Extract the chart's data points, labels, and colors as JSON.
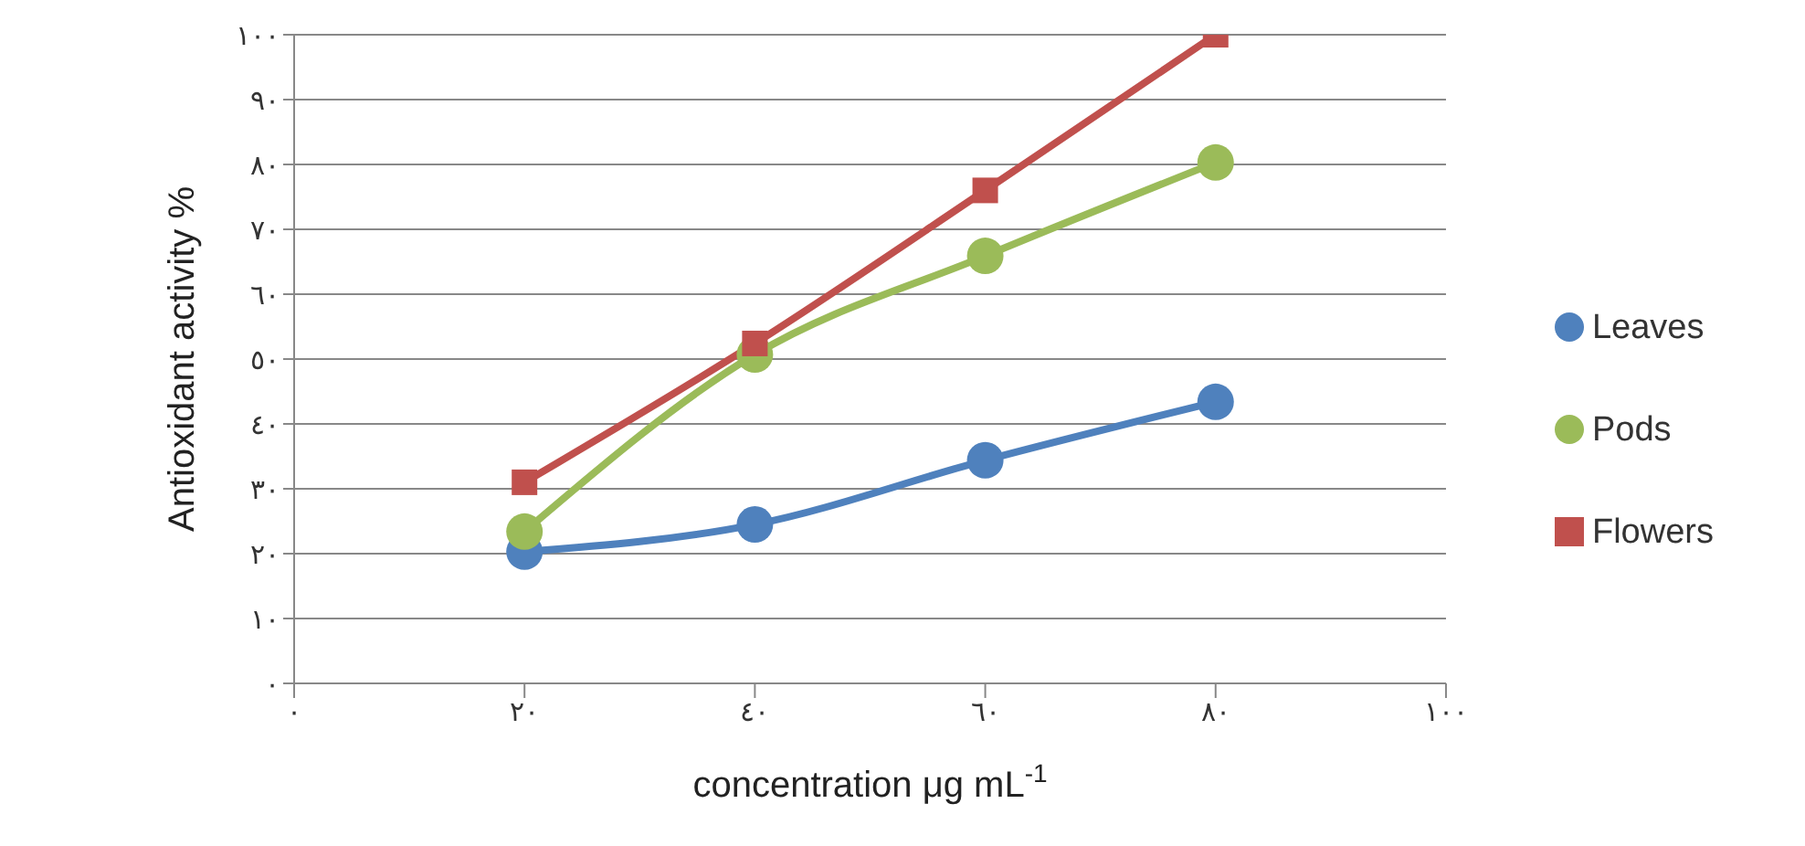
{
  "chart_data": {
    "type": "line",
    "xlabel": "concentration μg mL$^{-1}$",
    "ylabel": "Antioxidant activity %",
    "x": [
      20,
      40,
      60,
      80
    ],
    "series": [
      {
        "name": "Leaves",
        "color": "#4f81bd",
        "values": [
          20.3,
          24.5,
          34.4,
          43.4
        ],
        "marker": "circle"
      },
      {
        "name": "Pods",
        "color": "#9bbb59",
        "values": [
          23.4,
          50.7,
          65.9,
          80.3
        ],
        "marker": "circle"
      },
      {
        "name": "Flowers",
        "color": "#c0504d",
        "values": [
          31,
          52.4,
          76,
          100
        ],
        "marker": "square"
      }
    ],
    "xlim": [
      0,
      100
    ],
    "xticks": [
      {
        "value": 0,
        "label": "٠"
      },
      {
        "value": 20,
        "label": "٢٠"
      },
      {
        "value": 40,
        "label": "٤٠"
      },
      {
        "value": 60,
        "label": "٦٠"
      },
      {
        "value": 80,
        "label": "٨٠"
      },
      {
        "value": 100,
        "label": "١٠٠"
      }
    ],
    "ylim": [
      0,
      100
    ],
    "yticks": [
      {
        "value": 0,
        "label": "٠"
      },
      {
        "value": 10,
        "label": "١٠"
      },
      {
        "value": 20,
        "label": "٢٠"
      },
      {
        "value": 30,
        "label": "٣٠"
      },
      {
        "value": 40,
        "label": "٤٠"
      },
      {
        "value": 50,
        "label": "٥٠"
      },
      {
        "value": 60,
        "label": "٦٠"
      },
      {
        "value": 70,
        "label": "٧٠"
      },
      {
        "value": 80,
        "label": "٨٠"
      },
      {
        "value": 90,
        "label": "٩٠"
      },
      {
        "value": 100,
        "label": "١٠٠"
      }
    ],
    "grid": "y",
    "legend": "right",
    "line_style": "solid"
  }
}
